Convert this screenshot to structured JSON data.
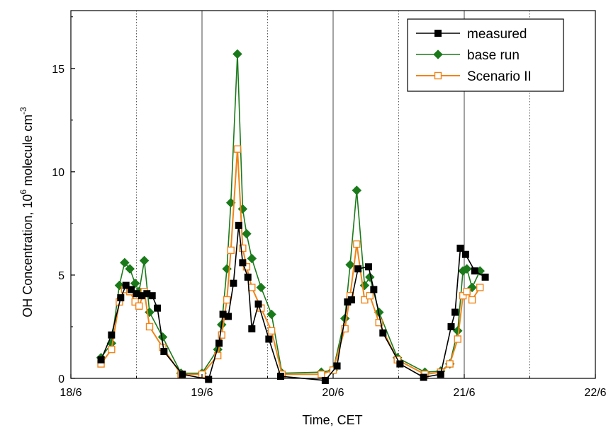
{
  "chart_data": {
    "type": "line",
    "xlabel": "Time, CET",
    "ylabel_main": "OH Concentration, 10",
    "ylabel_sup_exp": "6",
    "ylabel_mid": " molecule cm",
    "ylabel_sup_unit": "-3",
    "x_ticks": [
      "18/6",
      "19/6",
      "20/6",
      "21/6",
      "22/6"
    ],
    "y_ticks": [
      "0",
      "5",
      "10",
      "15"
    ],
    "xlim": [
      0,
      4
    ],
    "ylim": [
      0,
      17.8
    ],
    "grid": {
      "solid_at_days": [
        1,
        2,
        3
      ],
      "dotted_at_noon": [
        0.5,
        1.5,
        2.5,
        3.5
      ]
    },
    "legend_position": "top-right",
    "series": [
      {
        "name": "measured",
        "color": "#000000",
        "marker": "filled-square",
        "points": [
          [
            0.23,
            0.9
          ],
          [
            0.31,
            2.1
          ],
          [
            0.38,
            3.9
          ],
          [
            0.42,
            4.5
          ],
          [
            0.46,
            4.3
          ],
          [
            0.5,
            4.1
          ],
          [
            0.54,
            4.0
          ],
          [
            0.58,
            4.1
          ],
          [
            0.62,
            4.0
          ],
          [
            0.66,
            3.4
          ],
          [
            0.71,
            1.3
          ],
          [
            0.85,
            0.2
          ],
          [
            1.05,
            -0.05
          ],
          [
            1.13,
            1.7
          ],
          [
            1.16,
            3.1
          ],
          [
            1.2,
            3.0
          ],
          [
            1.24,
            4.6
          ],
          [
            1.28,
            7.4
          ],
          [
            1.31,
            5.6
          ],
          [
            1.35,
            4.9
          ],
          [
            1.38,
            2.4
          ],
          [
            1.43,
            3.6
          ],
          [
            1.51,
            1.9
          ],
          [
            1.6,
            0.1
          ],
          [
            1.94,
            -0.1
          ],
          [
            2.03,
            0.6
          ],
          [
            2.11,
            3.7
          ],
          [
            2.14,
            3.8
          ],
          [
            2.19,
            5.3
          ],
          [
            2.27,
            5.4
          ],
          [
            2.31,
            4.3
          ],
          [
            2.38,
            2.2
          ],
          [
            2.51,
            0.7
          ],
          [
            2.69,
            0.05
          ],
          [
            2.82,
            0.2
          ],
          [
            2.9,
            2.5
          ],
          [
            2.93,
            3.2
          ],
          [
            2.97,
            6.3
          ],
          [
            3.01,
            6.0
          ],
          [
            3.08,
            5.2
          ],
          [
            3.16,
            4.9
          ]
        ]
      },
      {
        "name": "base run",
        "color": "#1a7a1a",
        "marker": "filled-diamond",
        "points": [
          [
            0.23,
            1.0
          ],
          [
            0.31,
            1.7
          ],
          [
            0.37,
            4.5
          ],
          [
            0.41,
            5.6
          ],
          [
            0.45,
            5.3
          ],
          [
            0.49,
            4.6
          ],
          [
            0.52,
            4.2
          ],
          [
            0.56,
            5.7
          ],
          [
            0.6,
            3.2
          ],
          [
            0.7,
            2.0
          ],
          [
            0.84,
            0.25
          ],
          [
            1.0,
            0.25
          ],
          [
            1.12,
            1.4
          ],
          [
            1.15,
            2.6
          ],
          [
            1.19,
            5.3
          ],
          [
            1.22,
            8.5
          ],
          [
            1.27,
            15.7
          ],
          [
            1.31,
            8.2
          ],
          [
            1.34,
            7.0
          ],
          [
            1.38,
            5.8
          ],
          [
            1.45,
            4.4
          ],
          [
            1.53,
            3.1
          ],
          [
            1.61,
            0.25
          ],
          [
            1.91,
            0.3
          ],
          [
            2.0,
            0.4
          ],
          [
            2.09,
            2.9
          ],
          [
            2.13,
            5.5
          ],
          [
            2.18,
            9.1
          ],
          [
            2.24,
            4.5
          ],
          [
            2.28,
            4.9
          ],
          [
            2.35,
            3.2
          ],
          [
            2.49,
            1.0
          ],
          [
            2.7,
            0.3
          ],
          [
            2.82,
            0.35
          ],
          [
            2.89,
            0.7
          ],
          [
            2.95,
            2.3
          ],
          [
            2.99,
            5.2
          ],
          [
            3.02,
            5.3
          ],
          [
            3.06,
            4.4
          ],
          [
            3.12,
            5.2
          ]
        ]
      },
      {
        "name": "Scenario II",
        "color": "#f08418",
        "marker": "open-square",
        "points": [
          [
            0.23,
            0.7
          ],
          [
            0.31,
            1.4
          ],
          [
            0.37,
            3.7
          ],
          [
            0.41,
            4.3
          ],
          [
            0.45,
            4.2
          ],
          [
            0.49,
            3.7
          ],
          [
            0.52,
            3.5
          ],
          [
            0.56,
            4.2
          ],
          [
            0.6,
            2.5
          ],
          [
            0.7,
            1.5
          ],
          [
            0.84,
            0.2
          ],
          [
            1.0,
            0.2
          ],
          [
            1.12,
            1.1
          ],
          [
            1.15,
            2.1
          ],
          [
            1.19,
            3.8
          ],
          [
            1.22,
            6.2
          ],
          [
            1.27,
            11.1
          ],
          [
            1.31,
            6.3
          ],
          [
            1.34,
            5.4
          ],
          [
            1.38,
            4.4
          ],
          [
            1.45,
            3.4
          ],
          [
            1.53,
            2.3
          ],
          [
            1.61,
            0.2
          ],
          [
            1.91,
            0.2
          ],
          [
            2.0,
            0.4
          ],
          [
            2.09,
            2.4
          ],
          [
            2.13,
            4.0
          ],
          [
            2.18,
            6.5
          ],
          [
            2.24,
            3.8
          ],
          [
            2.28,
            4.0
          ],
          [
            2.35,
            2.7
          ],
          [
            2.49,
            0.9
          ],
          [
            2.7,
            0.2
          ],
          [
            2.82,
            0.3
          ],
          [
            2.89,
            0.7
          ],
          [
            2.95,
            1.9
          ],
          [
            2.99,
            4.0
          ],
          [
            3.02,
            4.2
          ],
          [
            3.06,
            3.8
          ],
          [
            3.12,
            4.4
          ]
        ]
      }
    ]
  }
}
